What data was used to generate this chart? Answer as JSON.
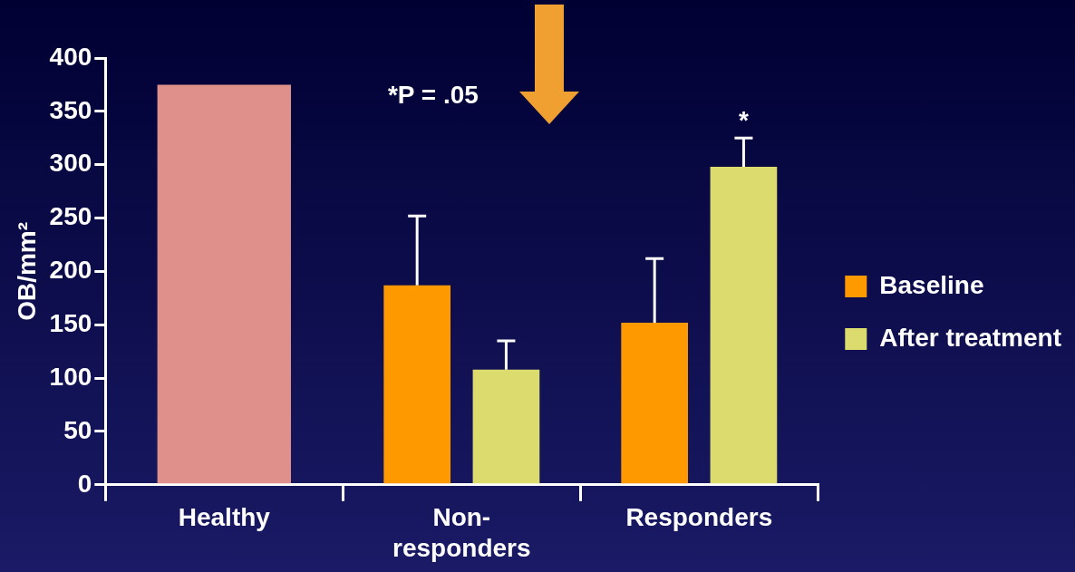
{
  "chart_data": {
    "type": "bar",
    "ylabel": "OB/mm²",
    "categories": [
      "Healthy",
      "Non-responders",
      "Responders"
    ],
    "series": [
      {
        "color": "#e0908a",
        "values": [
          375,
          null,
          null
        ]
      },
      {
        "name": "Baseline",
        "color": "#ff9900",
        "values": [
          null,
          187,
          152
        ],
        "errors": [
          null,
          [
            187,
            252
          ],
          [
            152,
            212
          ]
        ]
      },
      {
        "name": "After treatment",
        "color": "#dcdc6e",
        "values": [
          null,
          108,
          298
        ],
        "errors": [
          null,
          [
            108,
            135
          ],
          [
            298,
            325
          ]
        ]
      }
    ],
    "ylim": [
      0,
      400
    ],
    "yticks": [
      0,
      50,
      100,
      150,
      200,
      250,
      300,
      350,
      400
    ],
    "grid": false,
    "legend": "right",
    "annotations": [
      "*P = .05",
      "*"
    ]
  }
}
